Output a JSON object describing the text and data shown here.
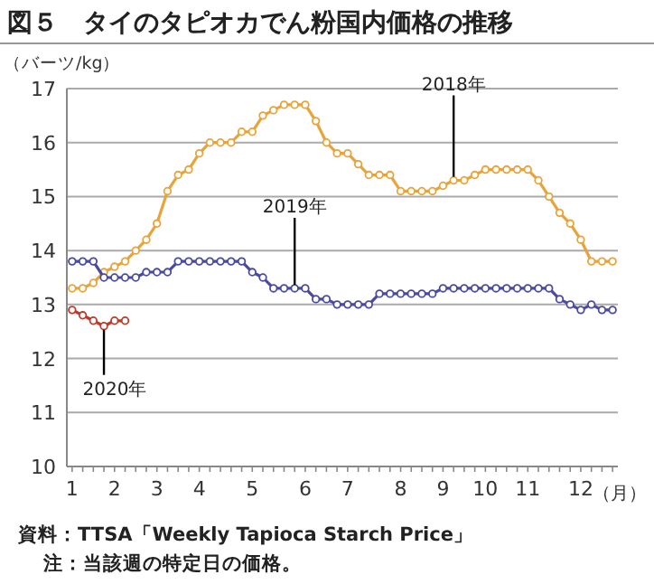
{
  "chart_data": {
    "type": "line",
    "title": "図５　タイのタピオカでん粉国内価格の推移",
    "ylabel": "（バーツ/kg）",
    "xlabel": "（月）",
    "categories": [
      "1",
      null,
      null,
      null,
      "2",
      null,
      null,
      null,
      "3",
      null,
      null,
      null,
      "4",
      null,
      null,
      null,
      null,
      "5",
      null,
      null,
      null,
      null,
      "6",
      null,
      null,
      null,
      "7",
      null,
      null,
      null,
      null,
      "8",
      null,
      null,
      null,
      "9",
      null,
      null,
      null,
      "10",
      null,
      null,
      null,
      "11",
      null,
      null,
      null,
      null,
      "12",
      null,
      null,
      null
    ],
    "series": [
      {
        "color": "#e8a33a",
        "values": [
          13.3,
          13.3,
          13.4,
          13.6,
          13.7,
          13.8,
          14.0,
          14.2,
          14.5,
          15.1,
          15.4,
          15.5,
          15.8,
          16.0,
          16.0,
          16.0,
          16.2,
          16.2,
          16.5,
          16.6,
          16.7,
          16.7,
          16.7,
          16.4,
          16.0,
          15.8,
          15.8,
          15.6,
          15.4,
          15.4,
          15.4,
          15.1,
          15.1,
          15.1,
          15.1,
          15.2,
          15.3,
          15.3,
          15.4,
          15.5,
          15.5,
          15.5,
          15.5,
          15.5,
          15.3,
          15.0,
          14.7,
          14.5,
          14.2,
          13.8,
          13.8,
          13.8
        ]
      },
      {
        "color": "#4a4aa0",
        "values": [
          13.8,
          13.8,
          13.8,
          13.5,
          13.5,
          13.5,
          13.5,
          13.6,
          13.6,
          13.6,
          13.8,
          13.8,
          13.8,
          13.8,
          13.8,
          13.8,
          13.8,
          13.6,
          13.5,
          13.3,
          13.3,
          13.3,
          13.3,
          13.1,
          13.1,
          13.0,
          13.0,
          13.0,
          13.0,
          13.2,
          13.2,
          13.2,
          13.2,
          13.2,
          13.2,
          13.3,
          13.3,
          13.3,
          13.3,
          13.3,
          13.3,
          13.3,
          13.3,
          13.3,
          13.3,
          13.3,
          13.1,
          13.0,
          12.9,
          13.0,
          12.9,
          12.9
        ]
      },
      {
        "color": "#c0392b",
        "values": [
          12.9,
          12.8,
          12.7,
          12.6,
          12.7,
          12.7,
          null,
          null,
          null,
          null,
          null,
          null,
          null,
          null,
          null,
          null,
          null,
          null,
          null,
          null,
          null,
          null,
          null,
          null,
          null,
          null,
          null,
          null,
          null,
          null,
          null,
          null,
          null,
          null,
          null,
          null,
          null,
          null,
          null,
          null,
          null,
          null,
          null,
          null,
          null,
          null,
          null,
          null,
          null,
          null,
          null,
          null
        ]
      }
    ],
    "ylim": [
      10,
      17
    ],
    "yticks": [
      10,
      11,
      12,
      13,
      14,
      15,
      16,
      17
    ],
    "grid": "y",
    "marker": "circle",
    "line_style": "solid",
    "annotations": [
      {
        "text": "2018年",
        "y": 15.3
      },
      {
        "text": "2019年",
        "y": 13.3
      },
      {
        "text": "2020年",
        "y": 12.6
      },
      "資料：TTSA「Weekly Tapioca Starch Price」",
      "注：当該週の特定日の価格。"
    ]
  }
}
